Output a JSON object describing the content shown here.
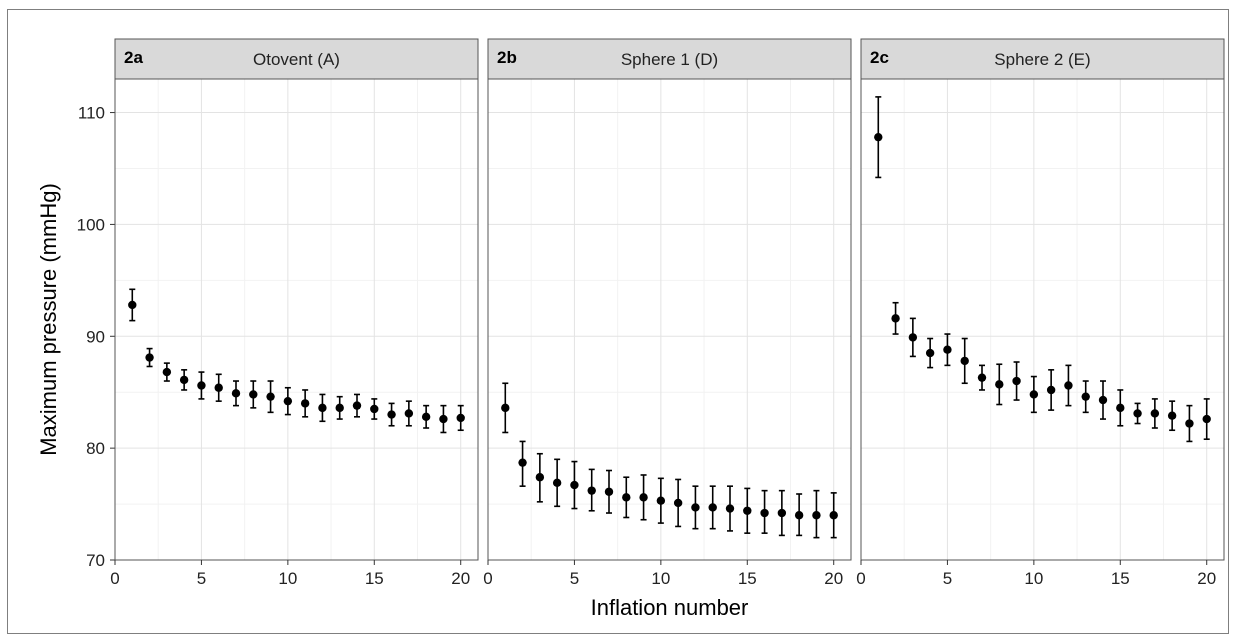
{
  "chart_data": {
    "type": "scatter",
    "ylabel": "Maximum pressure (mmHg)",
    "xlabel": "Inflation number",
    "xlim": [
      0,
      21
    ],
    "ylim": [
      70,
      113
    ],
    "xticks": [
      0,
      5,
      10,
      15,
      20
    ],
    "yticks": [
      70,
      80,
      90,
      100,
      110
    ],
    "grid": true,
    "panels": [
      {
        "tag": "2a",
        "title": "Otovent (A)",
        "points": [
          {
            "x": 1,
            "y": 92.8,
            "lo": 91.4,
            "hi": 94.2
          },
          {
            "x": 2,
            "y": 88.1,
            "lo": 87.3,
            "hi": 88.9
          },
          {
            "x": 3,
            "y": 86.8,
            "lo": 86.0,
            "hi": 87.6
          },
          {
            "x": 4,
            "y": 86.1,
            "lo": 85.2,
            "hi": 87.0
          },
          {
            "x": 5,
            "y": 85.6,
            "lo": 84.4,
            "hi": 86.8
          },
          {
            "x": 6,
            "y": 85.4,
            "lo": 84.2,
            "hi": 86.6
          },
          {
            "x": 7,
            "y": 84.9,
            "lo": 83.8,
            "hi": 86.0
          },
          {
            "x": 8,
            "y": 84.8,
            "lo": 83.6,
            "hi": 86.0
          },
          {
            "x": 9,
            "y": 84.6,
            "lo": 83.2,
            "hi": 86.0
          },
          {
            "x": 10,
            "y": 84.2,
            "lo": 83.0,
            "hi": 85.4
          },
          {
            "x": 11,
            "y": 84.0,
            "lo": 82.8,
            "hi": 85.2
          },
          {
            "x": 12,
            "y": 83.6,
            "lo": 82.4,
            "hi": 84.8
          },
          {
            "x": 13,
            "y": 83.6,
            "lo": 82.6,
            "hi": 84.6
          },
          {
            "x": 14,
            "y": 83.8,
            "lo": 82.8,
            "hi": 84.8
          },
          {
            "x": 15,
            "y": 83.5,
            "lo": 82.6,
            "hi": 84.4
          },
          {
            "x": 16,
            "y": 83.0,
            "lo": 82.0,
            "hi": 84.0
          },
          {
            "x": 17,
            "y": 83.1,
            "lo": 82.0,
            "hi": 84.2
          },
          {
            "x": 18,
            "y": 82.8,
            "lo": 81.8,
            "hi": 83.8
          },
          {
            "x": 19,
            "y": 82.6,
            "lo": 81.4,
            "hi": 83.8
          },
          {
            "x": 20,
            "y": 82.7,
            "lo": 81.6,
            "hi": 83.8
          }
        ]
      },
      {
        "tag": "2b",
        "title": "Sphere 1 (D)",
        "points": [
          {
            "x": 1,
            "y": 83.6,
            "lo": 81.4,
            "hi": 85.8
          },
          {
            "x": 2,
            "y": 78.7,
            "lo": 76.6,
            "hi": 80.6
          },
          {
            "x": 3,
            "y": 77.4,
            "lo": 75.2,
            "hi": 79.5
          },
          {
            "x": 4,
            "y": 76.9,
            "lo": 74.8,
            "hi": 79.0
          },
          {
            "x": 5,
            "y": 76.7,
            "lo": 74.6,
            "hi": 78.8
          },
          {
            "x": 6,
            "y": 76.2,
            "lo": 74.4,
            "hi": 78.1
          },
          {
            "x": 7,
            "y": 76.1,
            "lo": 74.2,
            "hi": 78.0
          },
          {
            "x": 8,
            "y": 75.6,
            "lo": 73.8,
            "hi": 77.4
          },
          {
            "x": 9,
            "y": 75.6,
            "lo": 73.6,
            "hi": 77.6
          },
          {
            "x": 10,
            "y": 75.3,
            "lo": 73.3,
            "hi": 77.3
          },
          {
            "x": 11,
            "y": 75.1,
            "lo": 73.0,
            "hi": 77.2
          },
          {
            "x": 12,
            "y": 74.7,
            "lo": 72.8,
            "hi": 76.6
          },
          {
            "x": 13,
            "y": 74.7,
            "lo": 72.8,
            "hi": 76.6
          },
          {
            "x": 14,
            "y": 74.6,
            "lo": 72.6,
            "hi": 76.6
          },
          {
            "x": 15,
            "y": 74.4,
            "lo": 72.4,
            "hi": 76.4
          },
          {
            "x": 16,
            "y": 74.2,
            "lo": 72.4,
            "hi": 76.2
          },
          {
            "x": 17,
            "y": 74.2,
            "lo": 72.2,
            "hi": 76.2
          },
          {
            "x": 18,
            "y": 74.0,
            "lo": 72.2,
            "hi": 75.9
          },
          {
            "x": 19,
            "y": 74.0,
            "lo": 72.0,
            "hi": 76.2
          },
          {
            "x": 20,
            "y": 74.0,
            "lo": 72.0,
            "hi": 76.0
          }
        ]
      },
      {
        "tag": "2c",
        "title": "Sphere 2 (E)",
        "points": [
          {
            "x": 1,
            "y": 107.8,
            "lo": 104.2,
            "hi": 111.4
          },
          {
            "x": 2,
            "y": 91.6,
            "lo": 90.2,
            "hi": 93.0
          },
          {
            "x": 3,
            "y": 89.9,
            "lo": 88.2,
            "hi": 91.6
          },
          {
            "x": 4,
            "y": 88.5,
            "lo": 87.2,
            "hi": 89.8
          },
          {
            "x": 5,
            "y": 88.8,
            "lo": 87.4,
            "hi": 90.2
          },
          {
            "x": 6,
            "y": 87.8,
            "lo": 85.8,
            "hi": 89.8
          },
          {
            "x": 7,
            "y": 86.3,
            "lo": 85.2,
            "hi": 87.4
          },
          {
            "x": 8,
            "y": 85.7,
            "lo": 83.9,
            "hi": 87.5
          },
          {
            "x": 9,
            "y": 86.0,
            "lo": 84.3,
            "hi": 87.7
          },
          {
            "x": 10,
            "y": 84.8,
            "lo": 83.2,
            "hi": 86.4
          },
          {
            "x": 11,
            "y": 85.2,
            "lo": 83.4,
            "hi": 87.0
          },
          {
            "x": 12,
            "y": 85.6,
            "lo": 83.8,
            "hi": 87.4
          },
          {
            "x": 13,
            "y": 84.6,
            "lo": 83.2,
            "hi": 86.0
          },
          {
            "x": 14,
            "y": 84.3,
            "lo": 82.6,
            "hi": 86.0
          },
          {
            "x": 15,
            "y": 83.6,
            "lo": 82.0,
            "hi": 85.2
          },
          {
            "x": 16,
            "y": 83.1,
            "lo": 82.2,
            "hi": 84.0
          },
          {
            "x": 17,
            "y": 83.1,
            "lo": 81.8,
            "hi": 84.4
          },
          {
            "x": 18,
            "y": 82.9,
            "lo": 81.6,
            "hi": 84.2
          },
          {
            "x": 19,
            "y": 82.2,
            "lo": 80.6,
            "hi": 83.8
          },
          {
            "x": 20,
            "y": 82.6,
            "lo": 80.8,
            "hi": 84.4
          }
        ]
      }
    ]
  }
}
